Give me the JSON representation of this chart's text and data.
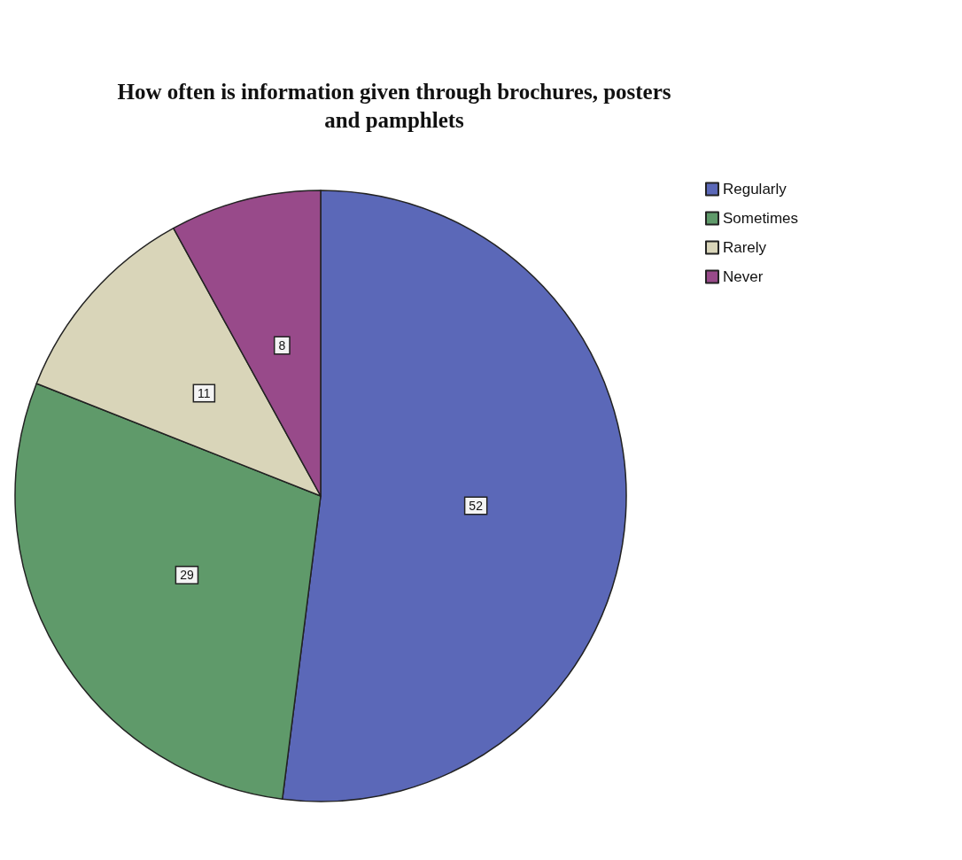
{
  "chart_data": {
    "type": "pie",
    "title": "How often is information given through brochures, posters\nand pamphlets",
    "categories": [
      "Regularly",
      "Sometimes",
      "Rarely",
      "Never"
    ],
    "values": [
      52,
      29,
      11,
      8
    ],
    "colors": [
      "#5b68b8",
      "#5f9a6a",
      "#d9d5b9",
      "#984a8a"
    ],
    "data_labels": true,
    "legend": "top right"
  }
}
